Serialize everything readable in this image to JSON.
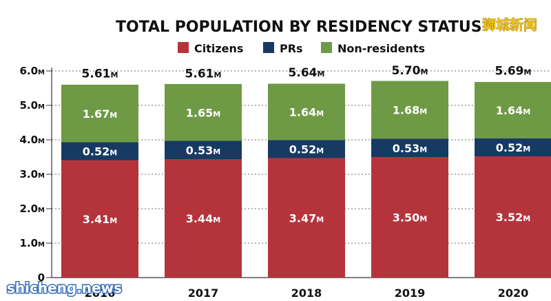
{
  "watermarks": {
    "top_right": "狮城新闻",
    "bottom_left": "shicheng.news"
  },
  "chart_data": {
    "type": "bar",
    "stacked": true,
    "title": "TOTAL POPULATION BY RESIDENCY STATUS",
    "unit": "M",
    "categories": [
      "2016",
      "2017",
      "2018",
      "2019",
      "2020"
    ],
    "series": [
      {
        "name": "Citizens",
        "color": "#b5343c",
        "values": [
          3.41,
          3.44,
          3.47,
          3.5,
          3.52
        ]
      },
      {
        "name": "PRs",
        "color": "#173a63",
        "values": [
          0.52,
          0.53,
          0.52,
          0.53,
          0.52
        ]
      },
      {
        "name": "Non-residents",
        "color": "#6f9a45",
        "values": [
          1.67,
          1.65,
          1.64,
          1.68,
          1.64
        ]
      }
    ],
    "totals": [
      5.61,
      5.61,
      5.64,
      5.7,
      5.69
    ],
    "yticks": [
      0,
      1.0,
      2.0,
      3.0,
      4.0,
      5.0,
      6.0
    ],
    "ylim": [
      0,
      6.0
    ],
    "legend_position": "top-center",
    "grid": "dotted"
  }
}
